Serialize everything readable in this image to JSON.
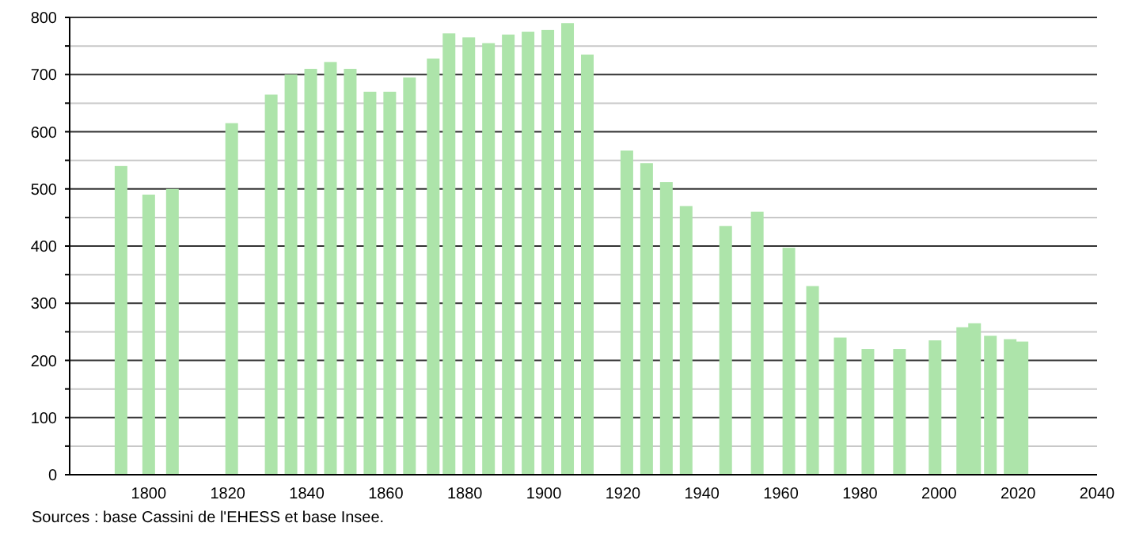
{
  "chart_data": {
    "type": "bar",
    "color": "#ade4aa",
    "x": [
      1793,
      1800,
      1806,
      1821,
      1831,
      1836,
      1841,
      1846,
      1851,
      1856,
      1861,
      1866,
      1872,
      1876,
      1881,
      1886,
      1891,
      1896,
      1901,
      1906,
      1911,
      1921,
      1926,
      1931,
      1936,
      1946,
      1954,
      1962,
      1968,
      1975,
      1982,
      1990,
      1999,
      2006,
      2009,
      2013,
      2018,
      2021
    ],
    "values": [
      540,
      490,
      500,
      615,
      665,
      700,
      710,
      722,
      710,
      670,
      670,
      695,
      728,
      772,
      765,
      755,
      770,
      775,
      778,
      790,
      735,
      567,
      545,
      512,
      470,
      435,
      460,
      397,
      330,
      240,
      220,
      220,
      235,
      258,
      265,
      243,
      237,
      233
    ],
    "xlim": [
      1780,
      2040
    ],
    "xticks": [
      1800,
      1820,
      1840,
      1860,
      1880,
      1900,
      1920,
      1940,
      1960,
      1980,
      2000,
      2020,
      2040
    ],
    "ylim": [
      0,
      800
    ],
    "yticks": [
      0,
      {
        "value": 50,
        "label": null
      },
      100,
      {
        "value": 150,
        "label": null
      },
      200,
      {
        "value": 250,
        "label": null
      },
      300,
      {
        "value": 350,
        "label": null
      },
      400,
      {
        "value": 450,
        "label": null
      },
      500,
      {
        "value": 550,
        "label": null
      },
      600,
      {
        "value": 650,
        "label": null
      },
      700,
      {
        "value": 750,
        "label": null
      },
      800
    ],
    "grid": "y",
    "annotations": [
      "Sources : base Cassini de l'EHESS et base Insee."
    ]
  }
}
